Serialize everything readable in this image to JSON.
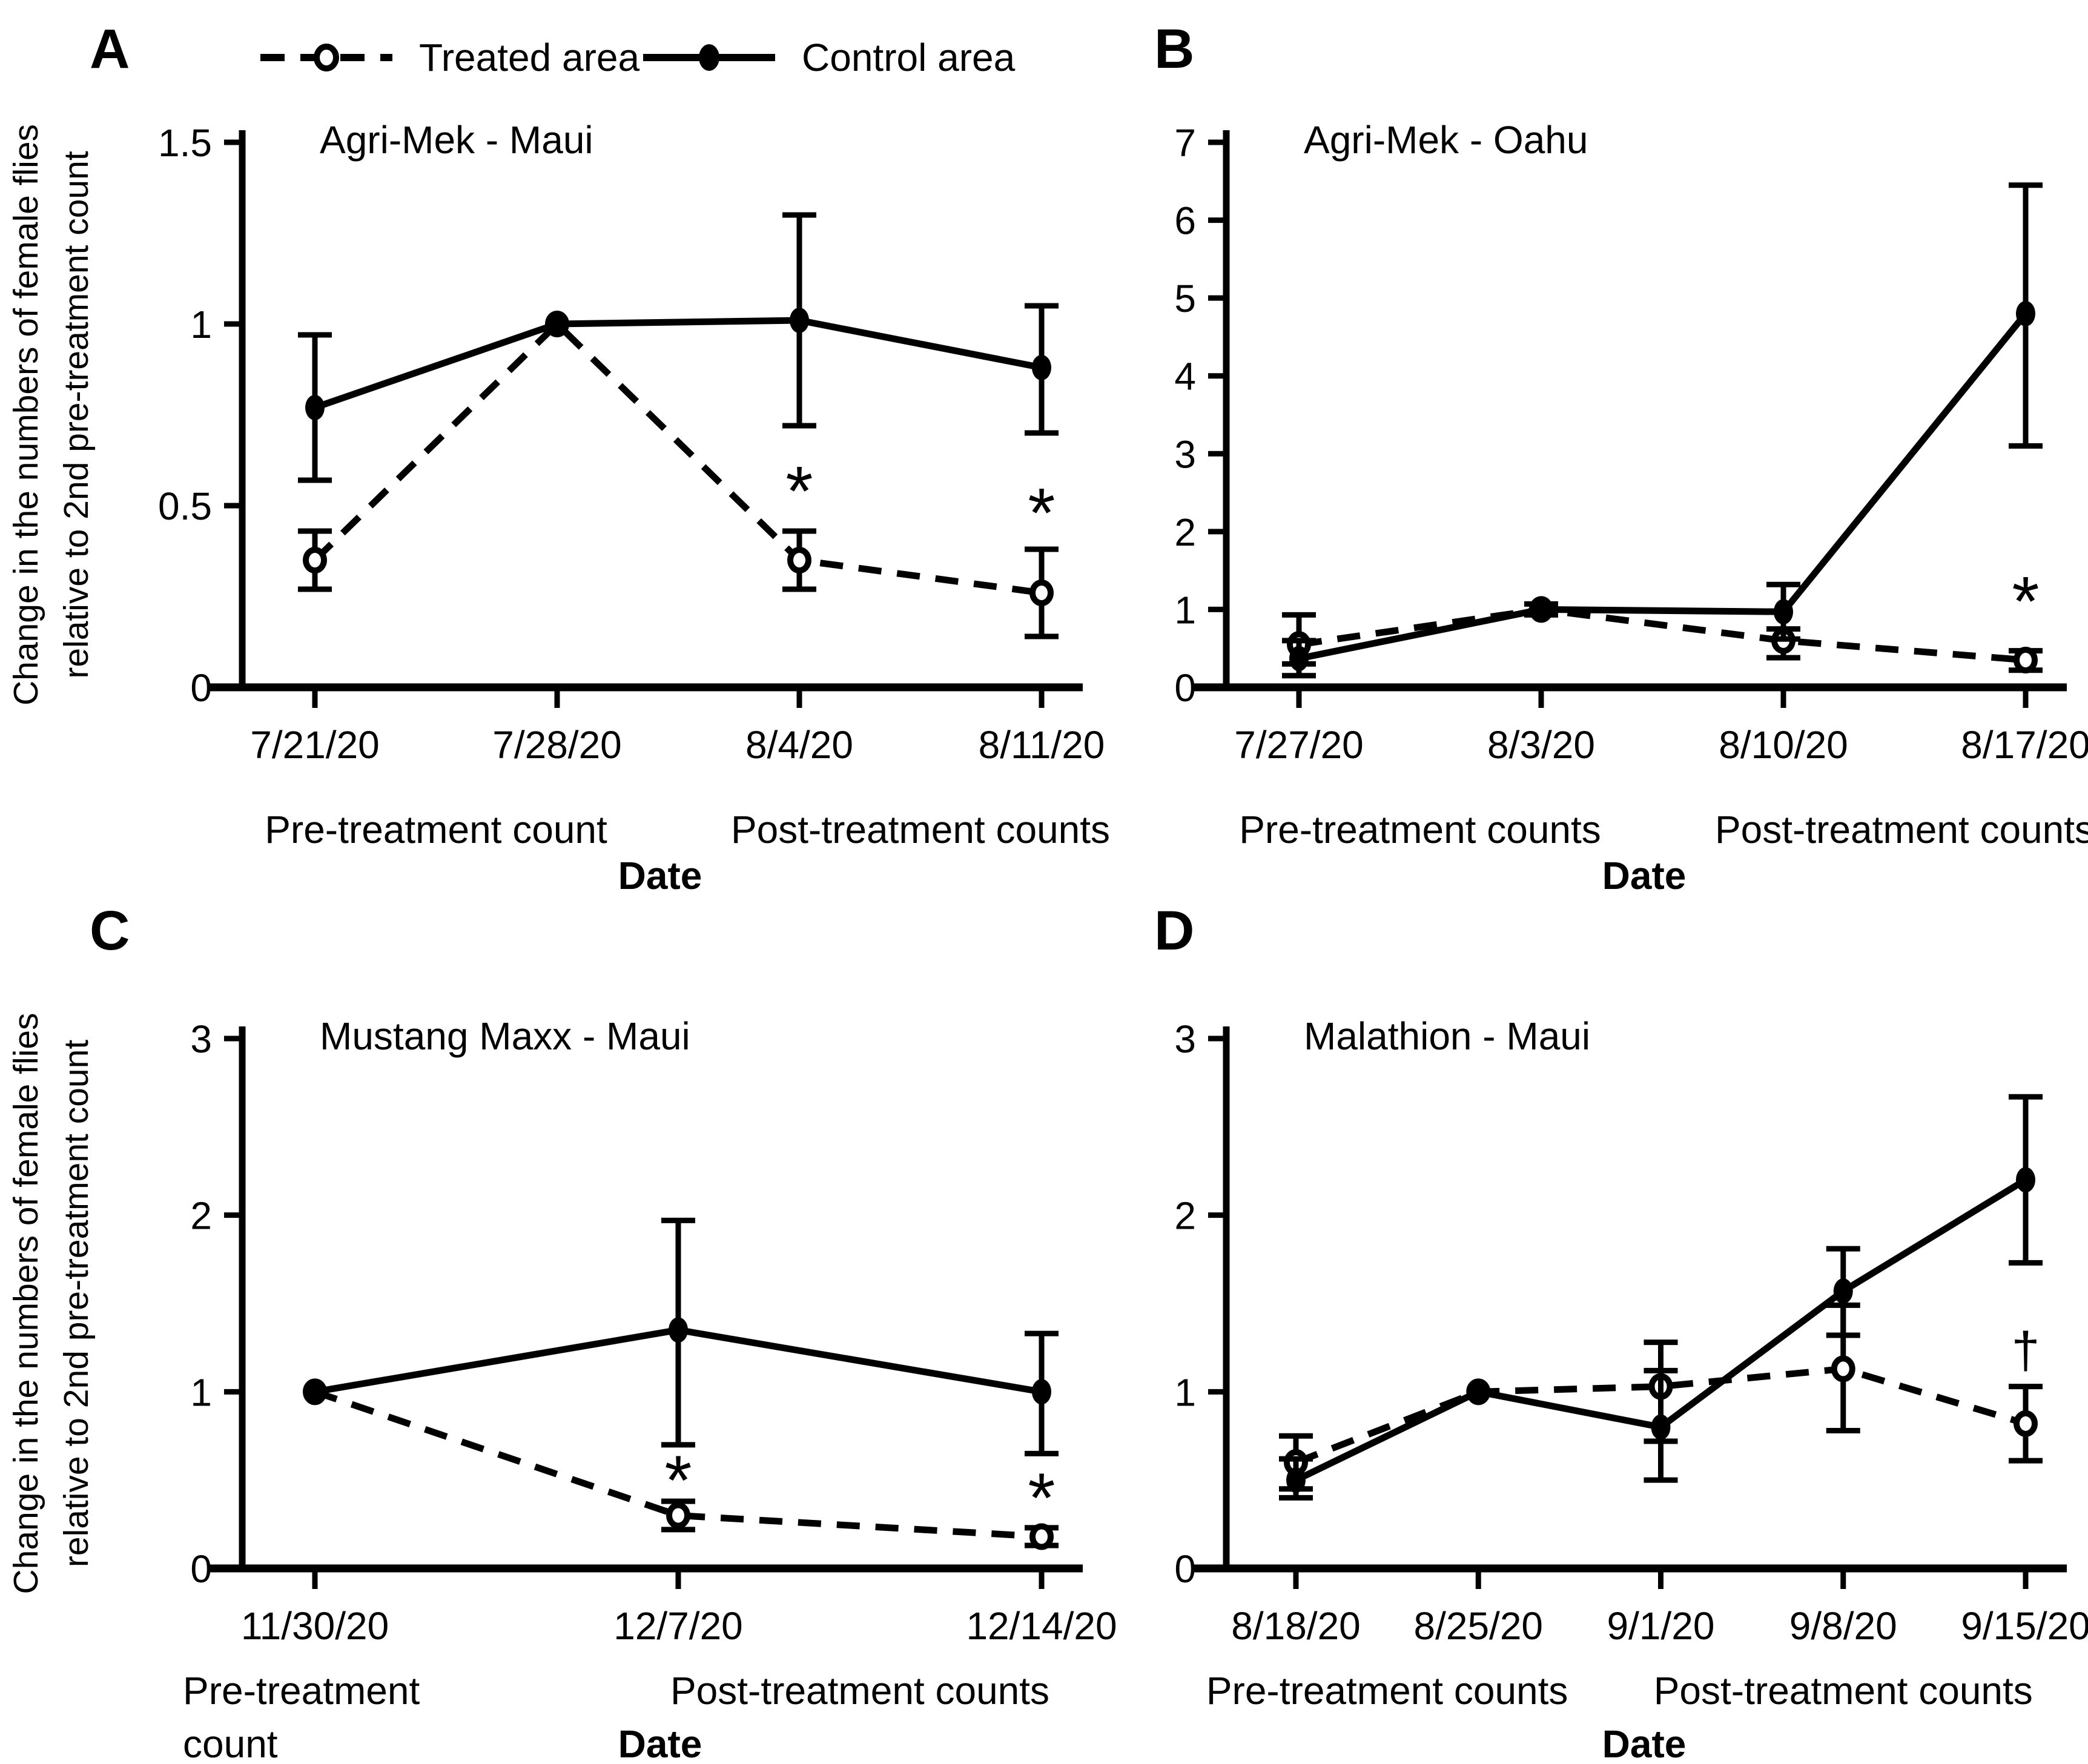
{
  "colors": {
    "foreground": "#000000",
    "background": "#ffffff"
  },
  "legend": {
    "items": [
      {
        "label": "Treated area",
        "line": "dashed",
        "marker": "open"
      },
      {
        "label": "Control area",
        "line": "solid",
        "marker": "filled"
      }
    ]
  },
  "y_axis_label_lines": [
    "Change in the numbers of female flies",
    "relative to 2nd pre-treatment count"
  ],
  "chart_data": [
    {
      "panel": "A",
      "type": "line",
      "title": "Agri-Mek - Maui",
      "x_tick_labels": [
        "7/21/20",
        "7/28/20",
        "8/4/20",
        "8/11/20"
      ],
      "ylim": [
        0,
        1.5
      ],
      "yticks": [
        {
          "value": 0,
          "label": "0"
        },
        {
          "value": 0.5,
          "label": "0.5"
        },
        {
          "value": 1,
          "label": "1"
        },
        {
          "value": 1.5,
          "label": "1.5"
        }
      ],
      "xlabel": "Date",
      "group_labels": [
        {
          "lines": [
            "Pre-treatment count"
          ],
          "from": 0,
          "to": 1
        },
        {
          "lines": [
            "Post-treatment counts"
          ],
          "from": 2,
          "to": 3
        }
      ],
      "series": [
        {
          "name": "Treated area",
          "line": "dashed",
          "marker": "open",
          "values": [
            0.35,
            1.0,
            0.35,
            0.26
          ],
          "err_low": [
            0.08,
            0,
            0.08,
            0.12
          ],
          "err_high": [
            0.08,
            0,
            0.08,
            0.12
          ]
        },
        {
          "name": "Control area",
          "line": "solid",
          "marker": "filled",
          "values": [
            0.77,
            1.0,
            1.01,
            0.88
          ],
          "err_low": [
            0.2,
            0,
            0.29,
            0.18
          ],
          "err_high": [
            0.2,
            0,
            0.29,
            0.17
          ]
        }
      ],
      "annotations": [
        {
          "text": "*",
          "x_index": 2,
          "y": 0.55
        },
        {
          "text": "*",
          "x_index": 3,
          "y": 0.49
        }
      ]
    },
    {
      "panel": "B",
      "type": "line",
      "title": "Agri-Mek - Oahu",
      "x_tick_labels": [
        "7/27/20",
        "8/3/20",
        "8/10/20",
        "8/17/20"
      ],
      "ylim": [
        0,
        7
      ],
      "yticks": [
        {
          "value": 0,
          "label": "0"
        },
        {
          "value": 1,
          "label": "1"
        },
        {
          "value": 2,
          "label": "2"
        },
        {
          "value": 3,
          "label": "3"
        },
        {
          "value": 4,
          "label": "4"
        },
        {
          "value": 5,
          "label": "5"
        },
        {
          "value": 6,
          "label": "6"
        },
        {
          "value": 7,
          "label": "7"
        }
      ],
      "xlabel": "Date",
      "group_labels": [
        {
          "lines": [
            "Pre-treatment counts"
          ],
          "from": 0,
          "to": 1
        },
        {
          "lines": [
            "Post-treatment counts"
          ],
          "from": 2,
          "to": 3
        }
      ],
      "series": [
        {
          "name": "Treated area",
          "line": "dashed",
          "marker": "open",
          "values": [
            0.55,
            1.0,
            0.6,
            0.35
          ],
          "err_low": [
            0.25,
            0.07,
            0.22,
            0.13
          ],
          "err_high": [
            0.38,
            0.07,
            0.15,
            0.12
          ]
        },
        {
          "name": "Control area",
          "line": "solid",
          "marker": "filled",
          "values": [
            0.37,
            1.0,
            0.97,
            4.8
          ],
          "err_low": [
            0.22,
            0,
            0.35,
            1.7
          ],
          "err_high": [
            0.23,
            0,
            0.35,
            1.65
          ]
        }
      ],
      "annotations": [
        {
          "text": "*",
          "x_index": 3,
          "y": 1.15
        }
      ]
    },
    {
      "panel": "C",
      "type": "line",
      "title": "Mustang Maxx - Maui",
      "x_tick_labels": [
        "11/30/20",
        "12/7/20",
        "12/14/20"
      ],
      "ylim": [
        0,
        3
      ],
      "yticks": [
        {
          "value": 0,
          "label": "0"
        },
        {
          "value": 1,
          "label": "1"
        },
        {
          "value": 2,
          "label": "2"
        },
        {
          "value": 3,
          "label": "3"
        }
      ],
      "xlabel": "Date",
      "group_labels": [
        {
          "lines": [
            "Pre-treatment",
            "count"
          ],
          "from": 0,
          "to": 0,
          "align": "left"
        },
        {
          "lines": [
            "Post-treatment counts"
          ],
          "from": 1,
          "to": 2
        }
      ],
      "series": [
        {
          "name": "Treated area",
          "line": "dashed",
          "marker": "open",
          "values": [
            1.0,
            0.3,
            0.18
          ],
          "err_low": [
            0,
            0.08,
            0.05
          ],
          "err_high": [
            0,
            0.08,
            0.05
          ]
        },
        {
          "name": "Control area",
          "line": "solid",
          "marker": "filled",
          "values": [
            1.0,
            1.35,
            1.0
          ],
          "err_low": [
            0,
            0.65,
            0.35
          ],
          "err_high": [
            0,
            0.62,
            0.33
          ]
        }
      ],
      "annotations": [
        {
          "text": "*",
          "x_index": 1,
          "y": 0.52
        },
        {
          "text": "*",
          "x_index": 2,
          "y": 0.42
        }
      ]
    },
    {
      "panel": "D",
      "type": "line",
      "title": "Malathion - Maui",
      "x_tick_labels": [
        "8/18/20",
        "8/25/20",
        "9/1/20",
        "9/8/20",
        "9/15/20"
      ],
      "ylim": [
        0,
        3
      ],
      "yticks": [
        {
          "value": 0,
          "label": "0"
        },
        {
          "value": 1,
          "label": "1"
        },
        {
          "value": 2,
          "label": "2"
        },
        {
          "value": 3,
          "label": "3"
        }
      ],
      "xlabel": "Date",
      "group_labels": [
        {
          "lines": [
            "Pre-treatment counts"
          ],
          "from": 0,
          "to": 1
        },
        {
          "lines": [
            "Post-treatment counts"
          ],
          "from": 2,
          "to": 4
        }
      ],
      "series": [
        {
          "name": "Treated area",
          "line": "dashed",
          "marker": "open",
          "values": [
            0.6,
            1.0,
            1.03,
            1.13,
            0.82
          ],
          "err_low": [
            0.15,
            0,
            0.31,
            0.35,
            0.21
          ],
          "err_high": [
            0.15,
            0,
            0.25,
            0.36,
            0.21
          ]
        },
        {
          "name": "Control area",
          "line": "solid",
          "marker": "filled",
          "values": [
            0.5,
            1.0,
            0.8,
            1.57,
            2.2
          ],
          "err_low": [
            0.1,
            0,
            0.3,
            0.25,
            0.47
          ],
          "err_high": [
            0.12,
            0,
            0.32,
            0.24,
            0.47
          ]
        }
      ],
      "annotations": [
        {
          "text": "†",
          "x_index": 4,
          "y": 1.24
        }
      ]
    }
  ]
}
